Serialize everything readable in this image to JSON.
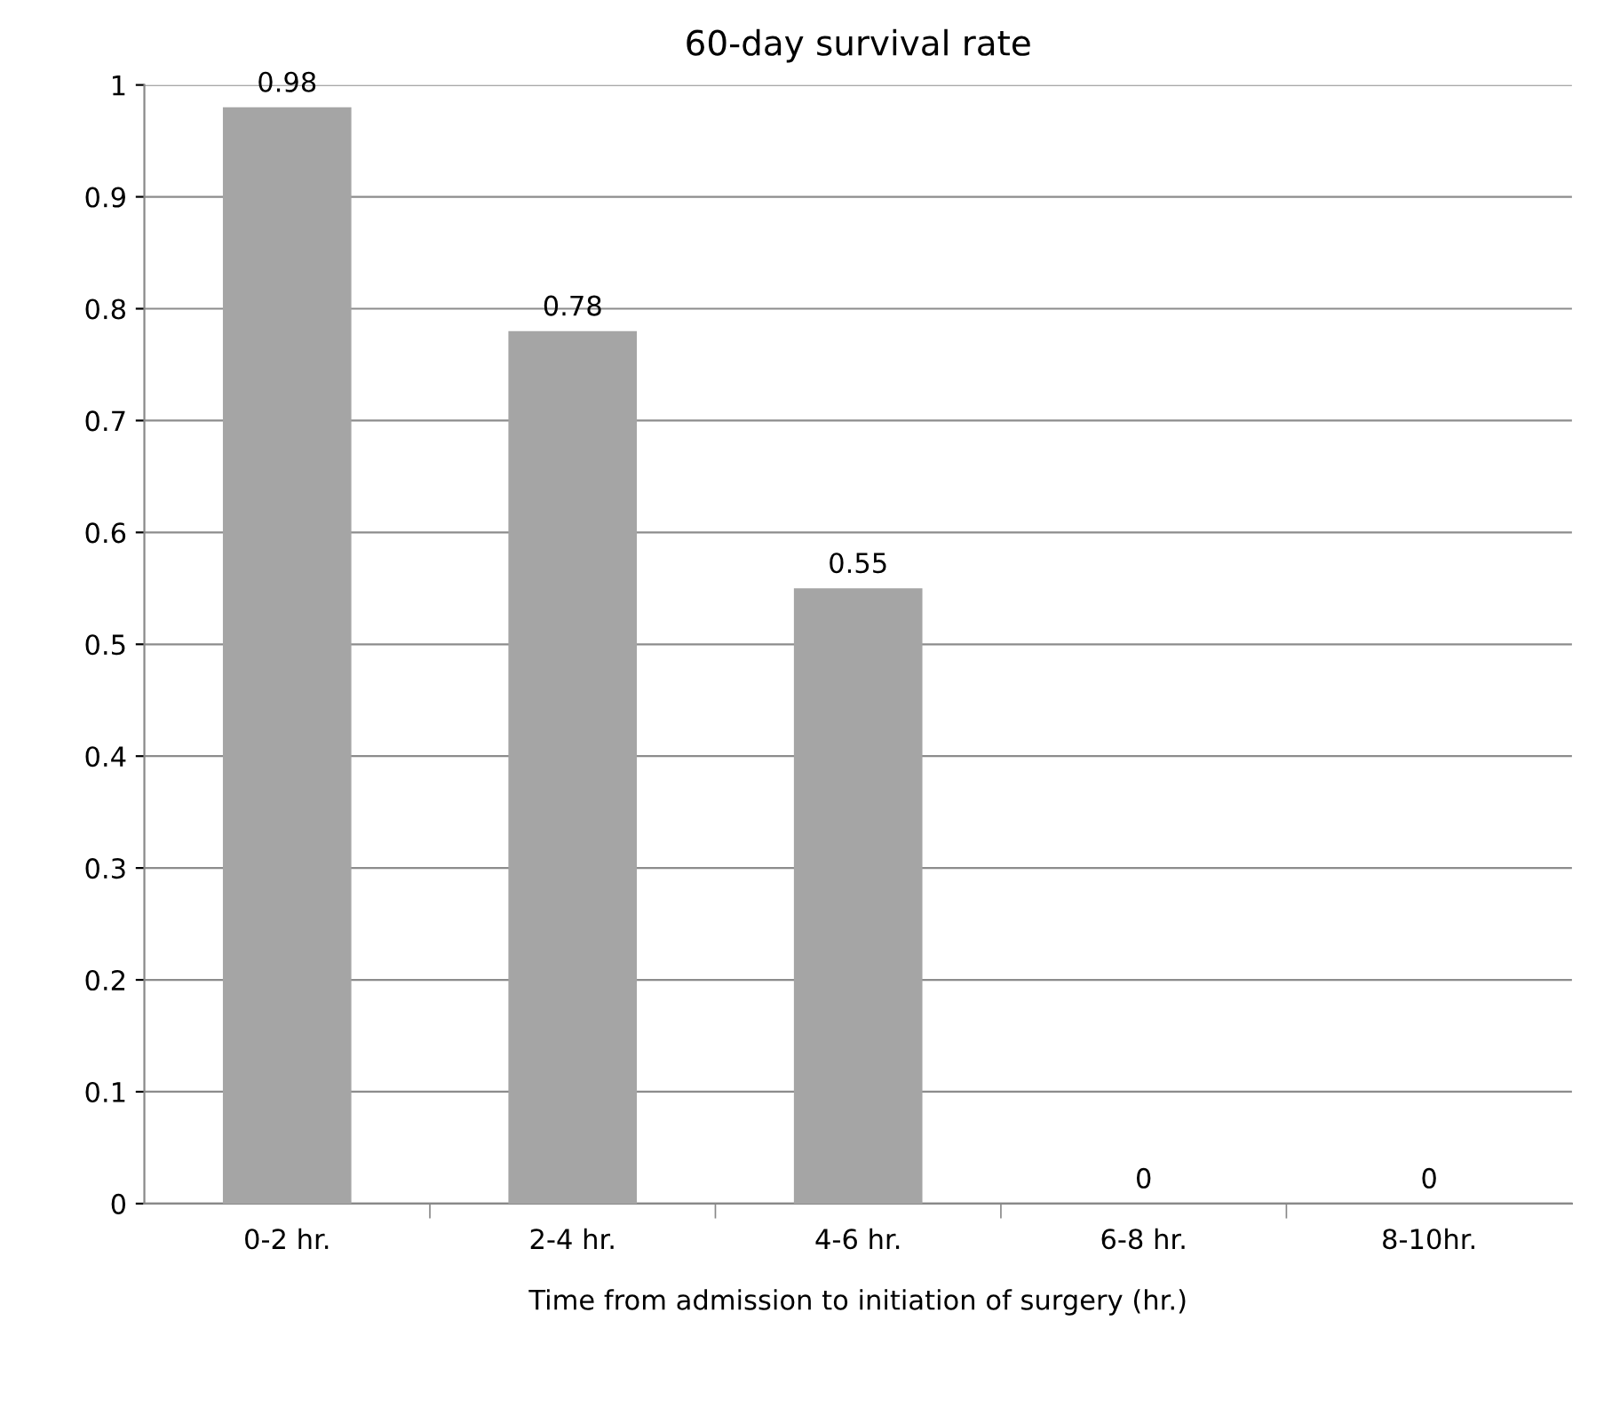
{
  "chart_data": {
    "type": "bar",
    "title": "60-day survival rate",
    "xlabel": "Time from admission to initiation of surgery (hr.)",
    "categories": [
      "0-2 hr.",
      "2-4 hr.",
      "4-6 hr.",
      "6-8 hr.",
      "8-10hr."
    ],
    "values": [
      0.98,
      0.78,
      0.55,
      0,
      0
    ],
    "color": "#a5a5a5",
    "ylim": [
      0,
      1
    ],
    "yticks": [
      0,
      0.1,
      0.2,
      0.3,
      0.4,
      0.5,
      0.6,
      0.7,
      0.8,
      0.9,
      1
    ],
    "grid": "y",
    "data_labels": true
  }
}
